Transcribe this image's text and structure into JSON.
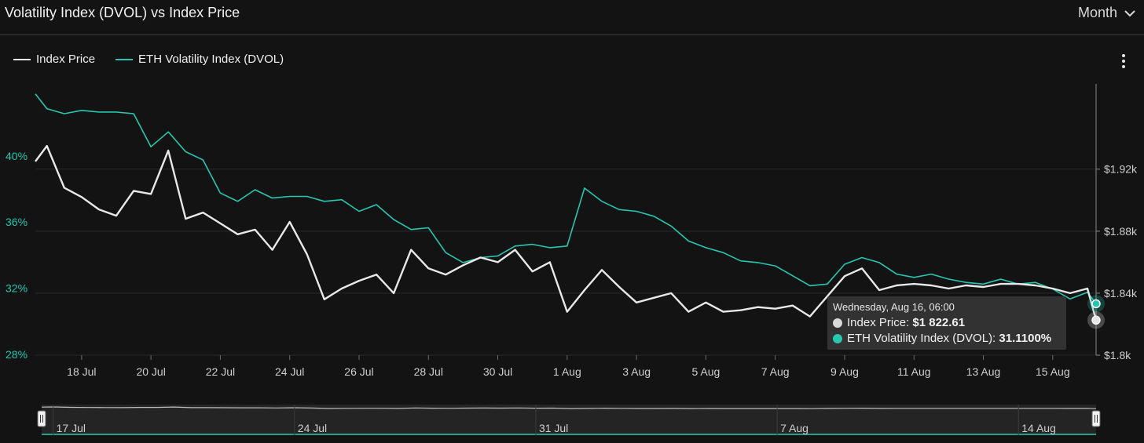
{
  "header": {
    "title": "Volatility Index (DVOL) vs Index Price",
    "period": "Month"
  },
  "legend": [
    {
      "label": "Index Price",
      "color": "#e8e8e8"
    },
    {
      "label": "ETH Volatility Index (DVOL)",
      "color": "#26c6b0"
    }
  ],
  "tooltip": {
    "date": "Wednesday, Aug 16, 06:00",
    "price_label": "Index Price: ",
    "price_value": "$1 822.61",
    "dvol_label": "ETH Volatility Index (DVOL): ",
    "dvol_value": "31.1100%"
  },
  "navigator": {
    "labels": [
      "17 Jul",
      "24 Jul",
      "31 Jul",
      "7 Aug",
      "14 Aug"
    ]
  },
  "chart_data": {
    "type": "line",
    "x_axis": {
      "ticks": [
        "18 Jul",
        "20 Jul",
        "22 Jul",
        "24 Jul",
        "26 Jul",
        "28 Jul",
        "30 Jul",
        "1 Aug",
        "3 Aug",
        "5 Aug",
        "7 Aug",
        "9 Aug",
        "11 Aug",
        "13 Aug",
        "15 Aug"
      ],
      "range": [
        "2023-07-16T16:00",
        "2023-08-16T06:00"
      ]
    },
    "y_left": {
      "ticks": [
        "28%",
        "32%",
        "36%",
        "40%"
      ],
      "range": [
        28,
        44.4
      ],
      "unit": "%"
    },
    "y_right": {
      "ticks": [
        "$1.8k",
        "$1.84k",
        "$1.88k",
        "$1.92k"
      ],
      "range": [
        1800,
        1975
      ]
    },
    "grid": true,
    "legend_position": "top-left",
    "series": [
      {
        "name": "Index Price",
        "axis": "right",
        "color": "#e8e8e8",
        "x": [
          "2023-07-16T16:00",
          "2023-07-17T00:00",
          "2023-07-17T12:00",
          "2023-07-18T00:00",
          "2023-07-18T12:00",
          "2023-07-19T00:00",
          "2023-07-19T12:00",
          "2023-07-20T00:00",
          "2023-07-20T12:00",
          "2023-07-21T00:00",
          "2023-07-21T12:00",
          "2023-07-22T00:00",
          "2023-07-22T12:00",
          "2023-07-23T00:00",
          "2023-07-23T12:00",
          "2023-07-24T00:00",
          "2023-07-24T12:00",
          "2023-07-25T00:00",
          "2023-07-25T12:00",
          "2023-07-26T00:00",
          "2023-07-26T12:00",
          "2023-07-27T00:00",
          "2023-07-27T12:00",
          "2023-07-28T00:00",
          "2023-07-28T12:00",
          "2023-07-29T00:00",
          "2023-07-29T12:00",
          "2023-07-30T00:00",
          "2023-07-30T12:00",
          "2023-07-31T00:00",
          "2023-07-31T12:00",
          "2023-08-01T00:00",
          "2023-08-01T12:00",
          "2023-08-02T00:00",
          "2023-08-02T12:00",
          "2023-08-03T00:00",
          "2023-08-03T12:00",
          "2023-08-04T00:00",
          "2023-08-04T12:00",
          "2023-08-05T00:00",
          "2023-08-05T12:00",
          "2023-08-06T00:00",
          "2023-08-06T12:00",
          "2023-08-07T00:00",
          "2023-08-07T12:00",
          "2023-08-08T00:00",
          "2023-08-08T12:00",
          "2023-08-09T00:00",
          "2023-08-09T12:00",
          "2023-08-10T00:00",
          "2023-08-10T12:00",
          "2023-08-11T00:00",
          "2023-08-11T12:00",
          "2023-08-12T00:00",
          "2023-08-12T12:00",
          "2023-08-13T00:00",
          "2023-08-13T12:00",
          "2023-08-14T00:00",
          "2023-08-14T12:00",
          "2023-08-15T00:00",
          "2023-08-15T12:00",
          "2023-08-16T00:00",
          "2023-08-16T06:00"
        ],
        "values": [
          1925,
          1935,
          1908,
          1902,
          1894,
          1890,
          1906,
          1904,
          1932,
          1888,
          1892,
          1885,
          1878,
          1881,
          1868,
          1886,
          1865,
          1836,
          1843,
          1848,
          1852,
          1840,
          1868,
          1856,
          1852,
          1858,
          1863,
          1860,
          1868,
          1854,
          1860,
          1828,
          1842,
          1855,
          1844,
          1834,
          1837,
          1840,
          1828,
          1834,
          1828,
          1829,
          1831,
          1830,
          1832,
          1825,
          1838,
          1851,
          1856,
          1842,
          1845,
          1846,
          1845,
          1843,
          1845,
          1844,
          1846,
          1846,
          1845,
          1843,
          1840,
          1843,
          1822.61
        ]
      },
      {
        "name": "ETH Volatility Index (DVOL)",
        "axis": "left",
        "color": "#26c6b0",
        "x": [
          "2023-07-16T16:00",
          "2023-07-17T00:00",
          "2023-07-17T12:00",
          "2023-07-18T00:00",
          "2023-07-18T12:00",
          "2023-07-19T00:00",
          "2023-07-19T12:00",
          "2023-07-20T00:00",
          "2023-07-20T12:00",
          "2023-07-21T00:00",
          "2023-07-21T12:00",
          "2023-07-22T00:00",
          "2023-07-22T12:00",
          "2023-07-23T00:00",
          "2023-07-23T12:00",
          "2023-07-24T00:00",
          "2023-07-24T12:00",
          "2023-07-25T00:00",
          "2023-07-25T12:00",
          "2023-07-26T00:00",
          "2023-07-26T12:00",
          "2023-07-27T00:00",
          "2023-07-27T12:00",
          "2023-07-28T00:00",
          "2023-07-28T12:00",
          "2023-07-29T00:00",
          "2023-07-29T12:00",
          "2023-07-30T00:00",
          "2023-07-30T12:00",
          "2023-07-31T00:00",
          "2023-07-31T12:00",
          "2023-08-01T00:00",
          "2023-08-01T12:00",
          "2023-08-02T00:00",
          "2023-08-02T12:00",
          "2023-08-03T00:00",
          "2023-08-03T12:00",
          "2023-08-04T00:00",
          "2023-08-04T12:00",
          "2023-08-05T00:00",
          "2023-08-05T12:00",
          "2023-08-06T00:00",
          "2023-08-06T12:00",
          "2023-08-07T00:00",
          "2023-08-07T12:00",
          "2023-08-08T00:00",
          "2023-08-08T12:00",
          "2023-08-09T00:00",
          "2023-08-09T12:00",
          "2023-08-10T00:00",
          "2023-08-10T12:00",
          "2023-08-11T00:00",
          "2023-08-11T12:00",
          "2023-08-12T00:00",
          "2023-08-12T12:00",
          "2023-08-13T00:00",
          "2023-08-13T12:00",
          "2023-08-14T00:00",
          "2023-08-14T12:00",
          "2023-08-15T00:00",
          "2023-08-15T12:00",
          "2023-08-16T00:00",
          "2023-08-16T06:00"
        ],
        "values": [
          43.8,
          42.9,
          42.6,
          42.8,
          42.7,
          42.7,
          42.6,
          40.6,
          41.5,
          40.3,
          39.8,
          37.8,
          37.3,
          38.0,
          37.5,
          37.6,
          37.6,
          37.3,
          37.4,
          36.7,
          37.1,
          36.2,
          35.6,
          35.7,
          34.2,
          33.6,
          33.9,
          34.0,
          34.6,
          34.7,
          34.5,
          34.6,
          38.1,
          37.3,
          36.8,
          36.7,
          36.4,
          35.8,
          34.9,
          34.5,
          34.2,
          33.7,
          33.6,
          33.4,
          32.8,
          32.2,
          32.3,
          33.5,
          33.9,
          33.6,
          32.9,
          32.7,
          32.9,
          32.6,
          32.4,
          32.3,
          32.6,
          32.3,
          32.4,
          32.0,
          31.4,
          31.8,
          31.11
        ]
      }
    ]
  }
}
